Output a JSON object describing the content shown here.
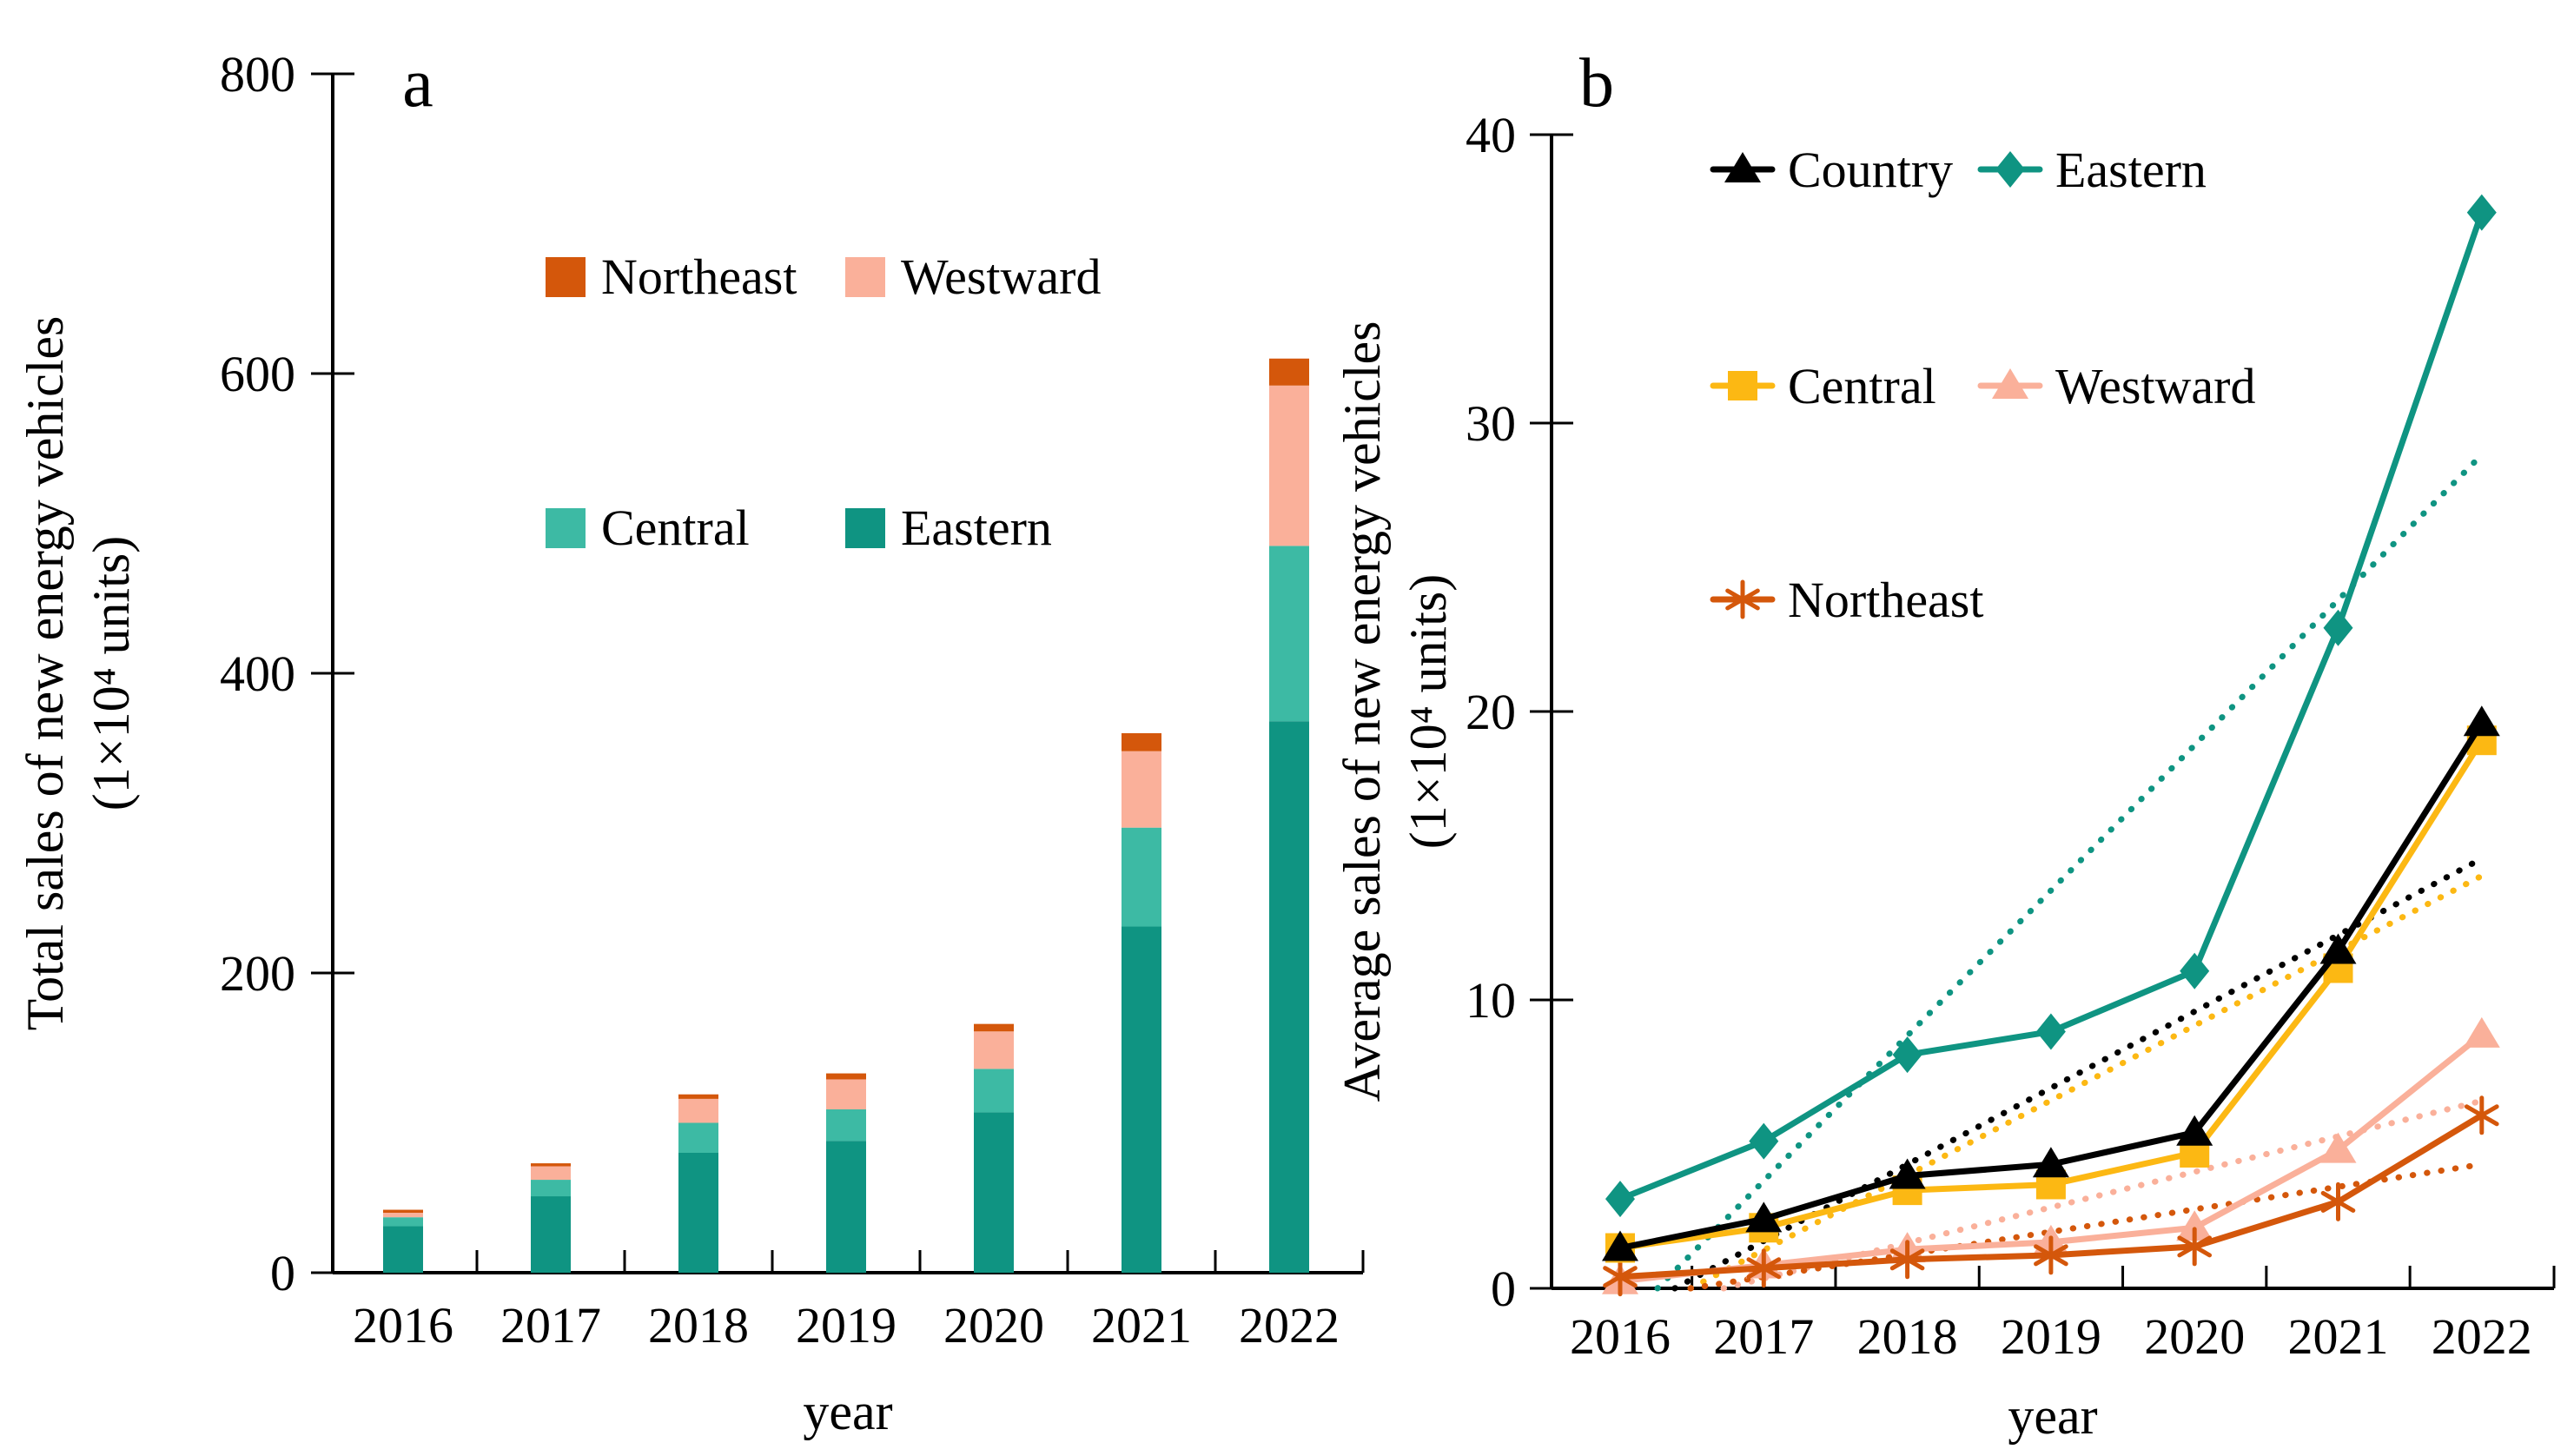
{
  "figure": {
    "background": "#ffffff",
    "xlabel": "year",
    "units_label": "(1×10⁴ units)"
  },
  "colors": {
    "eastern": "#0F9482",
    "central": "#3DBAA4",
    "westward": "#FAB09A",
    "northeast": "#D4570B",
    "central_line": "#FCB813",
    "country": "#000000",
    "axis": "#000000"
  },
  "chart_data": [
    {
      "panel_label": "a",
      "type": "bar",
      "stacked": true,
      "title": "",
      "xlabel": "year",
      "ylabel": "Total sales of new energy vehicles",
      "ylabel_units": "(1×10⁴ units)",
      "categories": [
        "2016",
        "2017",
        "2018",
        "2019",
        "2020",
        "2021",
        "2022"
      ],
      "yticks": [
        0,
        200,
        400,
        600,
        800
      ],
      "ylim": [
        0,
        800
      ],
      "grid": false,
      "legend_position": "upper-left-inside",
      "series": [
        {
          "name": "Eastern",
          "color_key": "eastern",
          "values": [
            31,
            51,
            80,
            88,
            107,
            231,
            368
          ]
        },
        {
          "name": "Central",
          "color_key": "central",
          "values": [
            6,
            11,
            20,
            21,
            29,
            66,
            117
          ]
        },
        {
          "name": "Westward",
          "color_key": "westward",
          "values": [
            3,
            9,
            16,
            20,
            25,
            51,
            107
          ]
        },
        {
          "name": "Northeast",
          "color_key": "northeast",
          "values": [
            2,
            2,
            3,
            4,
            5,
            12,
            18
          ]
        }
      ],
      "totals": [
        42,
        73,
        119,
        133,
        166,
        360,
        610
      ],
      "legend": [
        {
          "series": 3
        },
        {
          "series": 2
        },
        {
          "series": 1
        },
        {
          "series": 0
        }
      ]
    },
    {
      "panel_label": "b",
      "type": "line",
      "title": "",
      "xlabel": "year",
      "ylabel": "Average sales of new energy vehicles",
      "ylabel_units": "(1×10⁴ units)",
      "categories": [
        "2016",
        "2017",
        "2018",
        "2019",
        "2020",
        "2021",
        "2022"
      ],
      "yticks": [
        0,
        10,
        20,
        30,
        40
      ],
      "ylim": [
        0,
        40
      ],
      "grid": false,
      "legend_position": "upper-left-inside",
      "series": [
        {
          "name": "Country",
          "marker": "triangle",
          "color_key": "country",
          "values": [
            1.4,
            2.4,
            3.9,
            4.3,
            5.4,
            11.7,
            19.6
          ],
          "trend": {
            "t0": 0.38,
            "end": 14.9
          }
        },
        {
          "name": "Eastern",
          "marker": "diamond",
          "color_key": "eastern",
          "values": [
            3.1,
            5.1,
            8.1,
            8.9,
            11.0,
            22.9,
            37.3
          ],
          "trend": {
            "t0": 0.26,
            "end": 28.9
          }
        },
        {
          "name": "Central",
          "marker": "square",
          "color_key": "central_line",
          "values": [
            1.4,
            2.1,
            3.4,
            3.6,
            4.7,
            11.1,
            19.0
          ],
          "trend": {
            "t0": 0.49,
            "end": 14.3
          }
        },
        {
          "name": "Westward",
          "marker": "triangle",
          "color_key": "westward",
          "values": [
            0.25,
            0.8,
            1.35,
            1.6,
            2.1,
            4.8,
            8.8
          ],
          "trend": {
            "t0": 0.72,
            "end": 6.5
          }
        },
        {
          "name": "Northeast",
          "marker": "asterisk",
          "color_key": "northeast",
          "values": [
            0.4,
            0.7,
            1.0,
            1.15,
            1.45,
            3.0,
            6.0
          ],
          "trend": {
            "t0": 0.49,
            "end": 4.3
          }
        }
      ],
      "legend": [
        {
          "series": 0,
          "row": 0,
          "col": 0
        },
        {
          "series": 1,
          "row": 0,
          "col": 1
        },
        {
          "series": 2,
          "row": 1,
          "col": 0
        },
        {
          "series": 3,
          "row": 1,
          "col": 1
        },
        {
          "series": 4,
          "row": 2,
          "col": 0
        }
      ]
    }
  ]
}
